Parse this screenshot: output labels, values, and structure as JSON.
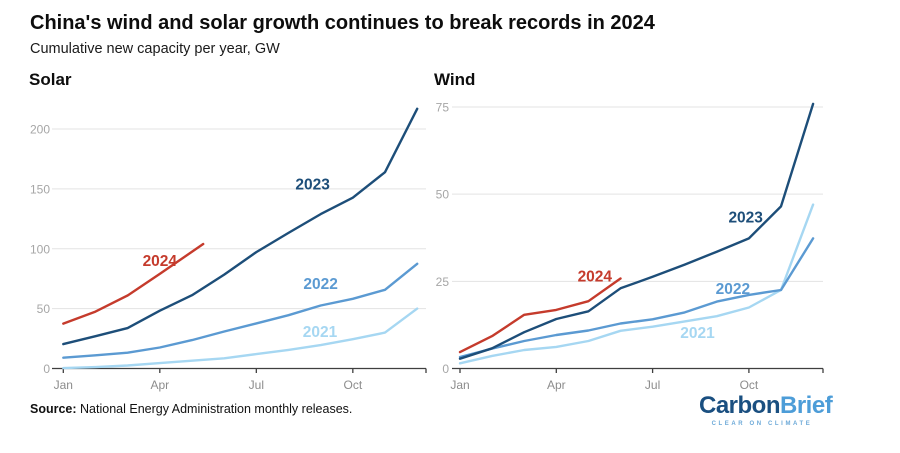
{
  "header": {
    "title": "China's wind and solar growth continues to break records in 2024",
    "subtitle": "Cumulative new capacity per year, GW"
  },
  "source": {
    "label": "Source:",
    "text": " National Energy Administration monthly releases."
  },
  "logo": {
    "part1": "Carbon",
    "part2": "Brief",
    "tagline": "CLEAR ON CLIMATE"
  },
  "colors": {
    "grid": "#e3e3e3",
    "axis": "#3f3f3f",
    "xtick_label": "#8c8c8c",
    "ytick_label": "#a6a6a6",
    "series": {
      "2024": "#c53b2c",
      "2023": "#1d4e79",
      "2022": "#5b9ad2",
      "2021": "#a6d7f2"
    }
  },
  "chart_data": [
    {
      "type": "line",
      "title": "Solar",
      "ylabel": "GW",
      "ylim": [
        0,
        225
      ],
      "yticks": [
        0,
        50,
        100,
        150,
        200
      ],
      "x_tick_labels": [
        "Jan",
        "Apr",
        "Jul",
        "Oct"
      ],
      "x_tick_months": [
        0,
        3,
        6,
        9
      ],
      "grid": true,
      "series": [
        {
          "name": "2021",
          "x": [
            0,
            1,
            2,
            3,
            4,
            5,
            6,
            7,
            8,
            9,
            10,
            11
          ],
          "values": [
            0.3,
            1.2,
            2.5,
            4.5,
            6.5,
            8.5,
            12,
            15.5,
            19.5,
            24.5,
            30,
            50
          ],
          "label": {
            "month": 7.98,
            "value": 31
          }
        },
        {
          "name": "2022",
          "x": [
            0,
            1,
            2,
            3,
            4,
            5,
            6,
            7,
            8,
            9,
            10,
            11
          ],
          "values": [
            9,
            11,
            13.2,
            17.5,
            23.7,
            30.9,
            37.7,
            44.5,
            52.6,
            58.2,
            65.7,
            87.4
          ],
          "label": {
            "month": 8.0,
            "value": 71
          }
        },
        {
          "name": "2023",
          "x": [
            0,
            1,
            2,
            3,
            4,
            5,
            6,
            7,
            8,
            9,
            10,
            11
          ],
          "values": [
            20.4,
            27,
            33.7,
            48.3,
            61.2,
            78.4,
            97.2,
            113.2,
            128.9,
            142.6,
            163.9,
            216.9
          ],
          "label": {
            "month": 7.75,
            "value": 154
          }
        },
        {
          "name": "2024",
          "x": [
            0,
            1,
            2,
            3,
            4.35
          ],
          "values": [
            37.5,
            47.5,
            61,
            79,
            104
          ],
          "label": {
            "month": 3.0,
            "value": 90
          }
        }
      ]
    },
    {
      "type": "line",
      "title": "Wind",
      "ylabel": "GW",
      "ylim": [
        0,
        78
      ],
      "yticks": [
        0,
        25,
        50,
        75
      ],
      "x_tick_labels": [
        "Jan",
        "Apr",
        "Jul",
        "Oct"
      ],
      "x_tick_months": [
        0,
        3,
        6,
        9
      ],
      "grid": true,
      "series": [
        {
          "name": "2021",
          "x": [
            0,
            1,
            2,
            3,
            4,
            5,
            6,
            7,
            8,
            9,
            10,
            11
          ],
          "values": [
            1.5,
            3.6,
            5.3,
            6.2,
            7.9,
            10.8,
            12,
            13.5,
            15,
            17.5,
            22.5,
            47
          ],
          "label": {
            "month": 7.4,
            "value": 10.3
          }
        },
        {
          "name": "2022",
          "x": [
            0,
            1,
            2,
            3,
            4,
            5,
            6,
            7,
            8,
            9,
            10,
            11
          ],
          "values": [
            3.3,
            5.7,
            7.9,
            9.6,
            10.9,
            12.9,
            14.1,
            16.1,
            19.2,
            21.1,
            22.5,
            37.3
          ],
          "label": {
            "month": 8.5,
            "value": 23
          }
        },
        {
          "name": "2023",
          "x": [
            0,
            1,
            2,
            3,
            4,
            5,
            6,
            7,
            8,
            9,
            10,
            11
          ],
          "values": [
            2.8,
            5.8,
            10.4,
            14.2,
            16.4,
            23,
            26.3,
            29.8,
            33.5,
            37.3,
            46.5,
            75.9
          ],
          "label": {
            "month": 8.9,
            "value": 43.5
          }
        },
        {
          "name": "2024",
          "x": [
            0,
            1,
            2,
            3,
            4,
            5
          ],
          "values": [
            4.7,
            9.3,
            15.4,
            16.8,
            19.3,
            25.8
          ],
          "label": {
            "month": 4.2,
            "value": 26.5
          }
        }
      ]
    }
  ]
}
